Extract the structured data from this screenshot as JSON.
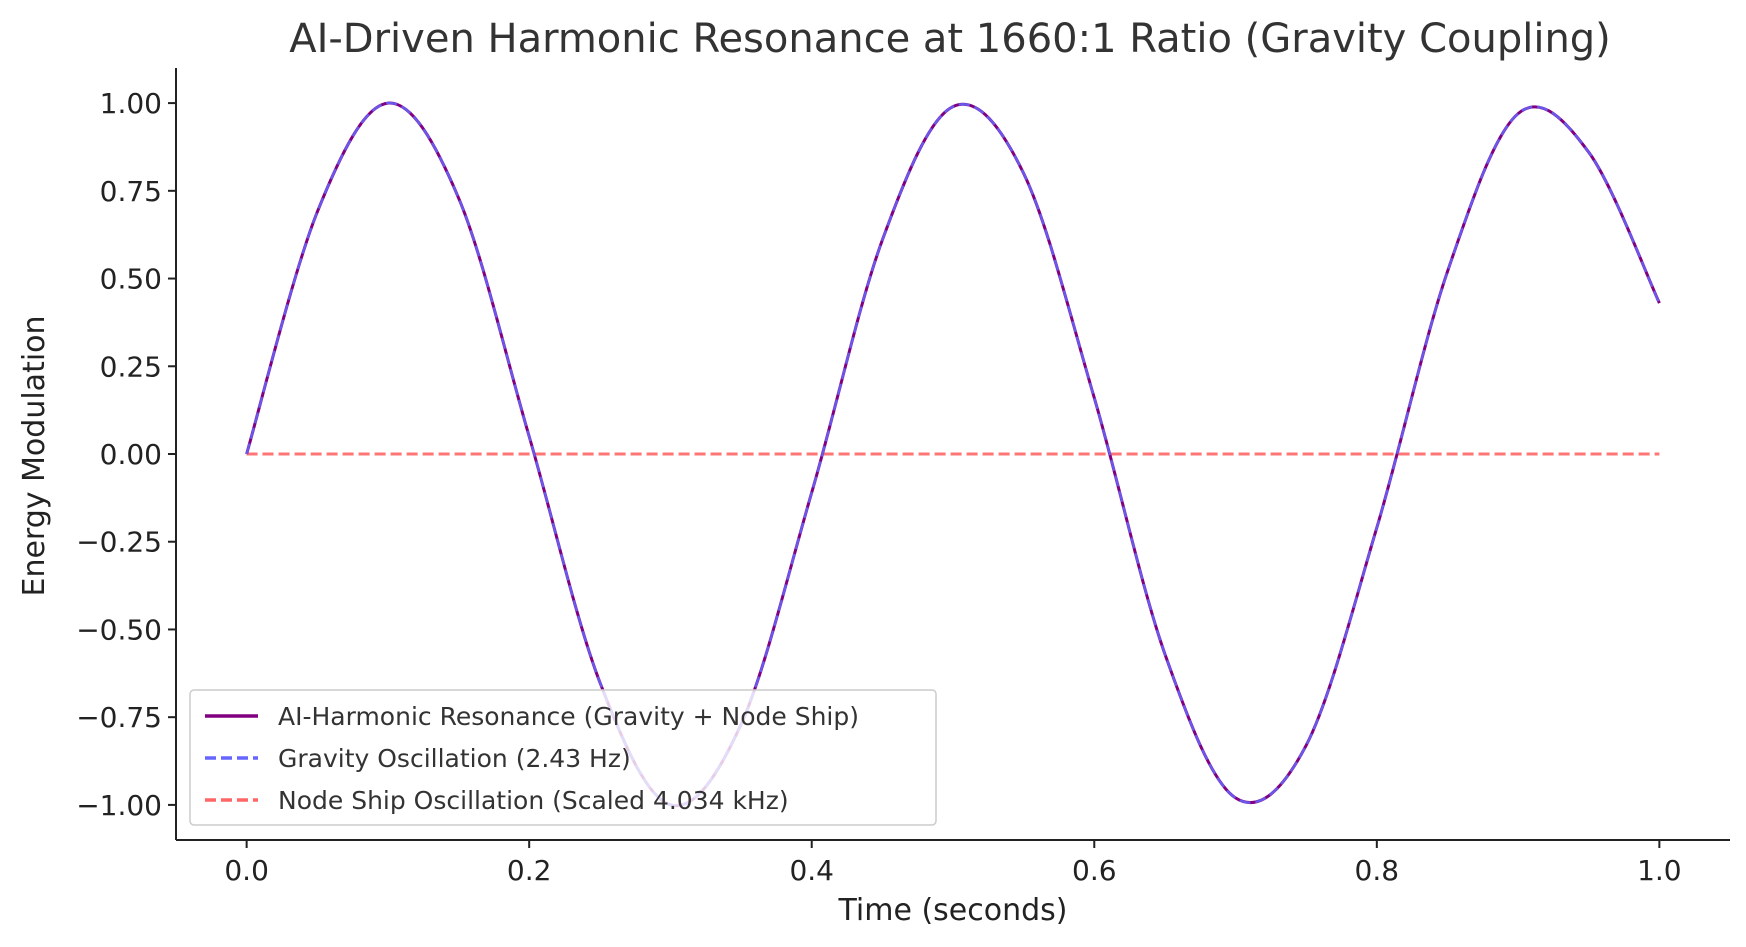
{
  "chart_data": {
    "type": "line",
    "title": "AI-Driven Harmonic Resonance at 1660:1 Ratio (Gravity Coupling)",
    "xlabel": "Time (seconds)",
    "ylabel": "Energy Modulation",
    "xlim": [
      -0.05,
      1.05
    ],
    "ylim": [
      -1.1,
      1.1
    ],
    "xticks": [
      0.0,
      0.2,
      0.4,
      0.6,
      0.8,
      1.0
    ],
    "xtick_labels": [
      "0.0",
      "0.2",
      "0.4",
      "0.6",
      "0.8",
      "1.0"
    ],
    "yticks": [
      1.0,
      0.75,
      0.5,
      0.25,
      0.0,
      -0.25,
      -0.5,
      -0.75,
      -1.0
    ],
    "ytick_labels": [
      "1.00",
      "0.75",
      "0.50",
      "0.25",
      "0.00",
      "−0.25",
      "−0.50",
      "−0.75",
      "−1.00"
    ],
    "grid": false,
    "legend_position": "bottom-left",
    "x": [
      0.0,
      0.05,
      0.1,
      0.15,
      0.2,
      0.25,
      0.3,
      0.35,
      0.4,
      0.45,
      0.5,
      0.55,
      0.6,
      0.65,
      0.7,
      0.75,
      0.8,
      0.85,
      0.9,
      0.95,
      1.0
    ],
    "series": [
      {
        "name": "AI-Harmonic Resonance (Gravity + Node Ship)",
        "style": "solid",
        "color": "#800080",
        "values": [
          0.0,
          0.69,
          1.0,
          0.73,
          0.05,
          -0.65,
          -1.0,
          -0.77,
          -0.11,
          0.61,
          0.99,
          0.8,
          0.16,
          -0.57,
          -0.98,
          -0.83,
          -0.21,
          0.52,
          0.97,
          0.86,
          0.43
        ]
      },
      {
        "name": "Gravity Oscillation (2.43 Hz)",
        "style": "dashed",
        "color": "#6666ff",
        "values": [
          0.0,
          0.69,
          1.0,
          0.73,
          0.05,
          -0.65,
          -1.0,
          -0.77,
          -0.11,
          0.61,
          0.99,
          0.8,
          0.16,
          -0.57,
          -0.98,
          -0.83,
          -0.21,
          0.52,
          0.97,
          0.86,
          0.43
        ]
      },
      {
        "name": "Node Ship Oscillation (Scaled 4.034 kHz)",
        "style": "dashed",
        "color": "#ff6666",
        "values": [
          0.0,
          0.0,
          0.0,
          0.0,
          0.0,
          0.0,
          0.0,
          0.0,
          0.0,
          0.0,
          0.0,
          0.0,
          0.0,
          0.0,
          0.0,
          0.0,
          0.0,
          0.0,
          0.0,
          0.0,
          0.0
        ]
      }
    ]
  }
}
